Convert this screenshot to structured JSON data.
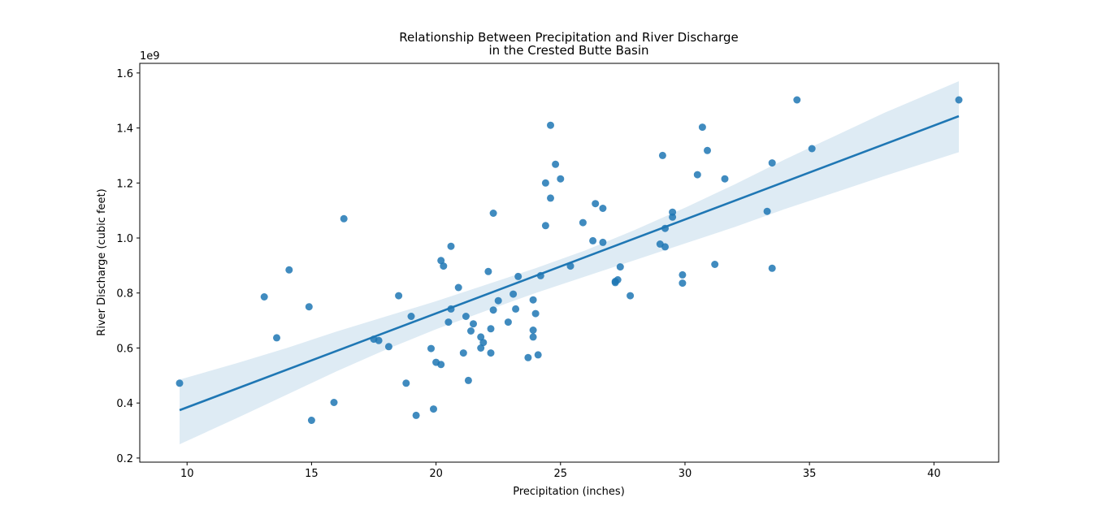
{
  "chart_data": {
    "type": "scatter",
    "title_lines": [
      "Relationship Between Precipitation and River Discharge",
      "in the Crested Butte Basin"
    ],
    "xlabel": "Precipitation (inches)",
    "ylabel": "River Discharge (cubic feet)",
    "y_offset_text": "1e9",
    "xlim": [
      8.1,
      42.6
    ],
    "ylim": [
      0.185,
      1.635
    ],
    "x_ticks": [
      10,
      15,
      20,
      25,
      30,
      35,
      40
    ],
    "y_ticks": [
      0.2,
      0.4,
      0.6,
      0.8,
      1.0,
      1.2,
      1.4,
      1.6
    ],
    "y_tick_labels": [
      "0.2",
      "0.4",
      "0.6",
      "0.8",
      "1.0",
      "1.2",
      "1.4",
      "1.6"
    ],
    "y_scale_note": "values in units of 1e9 cubic feet",
    "grid": false,
    "colors": {
      "points": "#1f77b4",
      "line": "#1f77b4",
      "band": "#1f77b4"
    },
    "points": [
      [
        9.7,
        0.472
      ],
      [
        13.1,
        0.786
      ],
      [
        13.6,
        0.637
      ],
      [
        14.1,
        0.884
      ],
      [
        14.9,
        0.75
      ],
      [
        15.0,
        0.337
      ],
      [
        15.9,
        0.402
      ],
      [
        16.3,
        1.07
      ],
      [
        17.5,
        0.632
      ],
      [
        17.7,
        0.627
      ],
      [
        18.1,
        0.605
      ],
      [
        18.5,
        0.79
      ],
      [
        18.8,
        0.472
      ],
      [
        19.0,
        0.715
      ],
      [
        19.2,
        0.355
      ],
      [
        19.8,
        0.598
      ],
      [
        19.9,
        0.378
      ],
      [
        20.0,
        0.548
      ],
      [
        20.2,
        0.54
      ],
      [
        20.2,
        0.918
      ],
      [
        20.3,
        0.898
      ],
      [
        20.5,
        0.694
      ],
      [
        20.6,
        0.97
      ],
      [
        20.6,
        0.742
      ],
      [
        20.9,
        0.82
      ],
      [
        21.1,
        0.582
      ],
      [
        21.2,
        0.715
      ],
      [
        21.3,
        0.482
      ],
      [
        21.4,
        0.662
      ],
      [
        21.5,
        0.688
      ],
      [
        21.8,
        0.6
      ],
      [
        21.8,
        0.64
      ],
      [
        21.9,
        0.62
      ],
      [
        22.1,
        0.878
      ],
      [
        22.2,
        0.582
      ],
      [
        22.3,
        1.09
      ],
      [
        22.2,
        0.67
      ],
      [
        22.3,
        0.738
      ],
      [
        22.5,
        0.772
      ],
      [
        22.9,
        0.694
      ],
      [
        23.1,
        0.796
      ],
      [
        23.2,
        0.742
      ],
      [
        23.3,
        0.86
      ],
      [
        23.7,
        0.565
      ],
      [
        23.9,
        0.64
      ],
      [
        23.9,
        0.665
      ],
      [
        23.9,
        0.775
      ],
      [
        24.0,
        0.725
      ],
      [
        24.1,
        0.575
      ],
      [
        24.2,
        0.863
      ],
      [
        24.4,
        1.045
      ],
      [
        24.4,
        1.2
      ],
      [
        24.6,
        1.41
      ],
      [
        24.6,
        1.145
      ],
      [
        24.8,
        1.268
      ],
      [
        25.0,
        1.215
      ],
      [
        25.4,
        0.898
      ],
      [
        25.9,
        1.056
      ],
      [
        26.3,
        0.99
      ],
      [
        26.4,
        1.125
      ],
      [
        26.7,
        1.108
      ],
      [
        26.7,
        0.984
      ],
      [
        27.2,
        0.842
      ],
      [
        27.2,
        0.838
      ],
      [
        27.3,
        0.848
      ],
      [
        27.4,
        0.895
      ],
      [
        27.8,
        0.79
      ],
      [
        29.0,
        0.978
      ],
      [
        29.1,
        1.3
      ],
      [
        29.2,
        1.035
      ],
      [
        29.2,
        0.968
      ],
      [
        29.5,
        1.076
      ],
      [
        29.5,
        1.094
      ],
      [
        29.9,
        0.836
      ],
      [
        29.9,
        0.866
      ],
      [
        30.5,
        1.23
      ],
      [
        30.7,
        1.403
      ],
      [
        30.9,
        1.318
      ],
      [
        31.2,
        0.904
      ],
      [
        31.6,
        1.215
      ],
      [
        33.3,
        1.097
      ],
      [
        33.5,
        1.273
      ],
      [
        33.5,
        0.89
      ],
      [
        34.5,
        1.502
      ],
      [
        35.1,
        1.325
      ],
      [
        41.0,
        1.502
      ]
    ],
    "regression": {
      "x": [
        9.7,
        41.0
      ],
      "y": [
        0.374,
        1.443
      ],
      "ci_upper": [
        [
          9.7,
          0.485
        ],
        [
          12.0,
          0.545
        ],
        [
          14.0,
          0.6
        ],
        [
          16.0,
          0.66
        ],
        [
          18.0,
          0.715
        ],
        [
          20.0,
          0.77
        ],
        [
          22.0,
          0.83
        ],
        [
          24.0,
          0.89
        ],
        [
          26.0,
          0.955
        ],
        [
          28.0,
          1.03
        ],
        [
          30.0,
          1.11
        ],
        [
          32.0,
          1.195
        ],
        [
          34.0,
          1.285
        ],
        [
          36.0,
          1.37
        ],
        [
          38.0,
          1.455
        ],
        [
          41.0,
          1.57
        ]
      ],
      "ci_lower": [
        [
          9.7,
          0.25
        ],
        [
          12.0,
          0.345
        ],
        [
          14.0,
          0.43
        ],
        [
          16.0,
          0.515
        ],
        [
          18.0,
          0.595
        ],
        [
          20.0,
          0.668
        ],
        [
          22.0,
          0.735
        ],
        [
          24.0,
          0.8
        ],
        [
          26.0,
          0.86
        ],
        [
          28.0,
          0.92
        ],
        [
          30.0,
          0.98
        ],
        [
          32.0,
          1.04
        ],
        [
          34.0,
          1.105
        ],
        [
          36.0,
          1.165
        ],
        [
          38.0,
          1.225
        ],
        [
          41.0,
          1.312
        ]
      ]
    }
  }
}
